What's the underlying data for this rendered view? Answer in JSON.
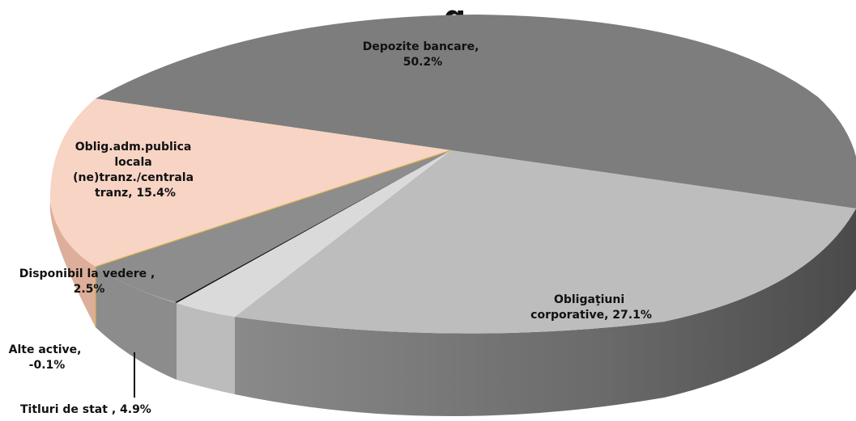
{
  "chart_data": {
    "type": "pie",
    "title": "Structura activelor ... g...",
    "title_visible_fragment": "g",
    "slices": [
      {
        "label": "Depozite bancare",
        "value": 50.2,
        "display": "50.2%",
        "color": "#7c7c7c"
      },
      {
        "label": "Obligaţiuni corporative",
        "value": 27.1,
        "display": "27.1%",
        "color": "#bdbdbd"
      },
      {
        "label": "Titluri de stat",
        "value": 4.9,
        "display": "4.9%",
        "color": "#d8d8d8"
      },
      {
        "label": "Alte active",
        "value": -0.1,
        "display": "-0.1%",
        "color": "#111111"
      },
      {
        "label": "Disponibil la vedere",
        "value": 2.5,
        "display": "2.5%",
        "color": "#8e8e8e"
      },
      {
        "label": "Oblig.adm.publica locala (ne)tranz./centrala tranz",
        "value": 15.4,
        "display": "15.4%",
        "color": "#f7d3c3"
      }
    ],
    "legend": "none",
    "style": "3d"
  },
  "labels": {
    "depozite": [
      "Depozite bancare,",
      "50.2%"
    ],
    "obligatiuni": [
      "Obligaţiuni",
      "corporative, 27.1%"
    ],
    "oblig_adm": [
      "Oblig.adm.publica",
      "locala",
      "(ne)tranz./centrala",
      "tranz, 15.4%"
    ],
    "disponibil": [
      "Disponibil la vedere ,",
      "2.5%"
    ],
    "alte": [
      "Alte active,",
      "-0.1%"
    ],
    "titluri": [
      "Titluri de stat , 4.9%"
    ]
  }
}
